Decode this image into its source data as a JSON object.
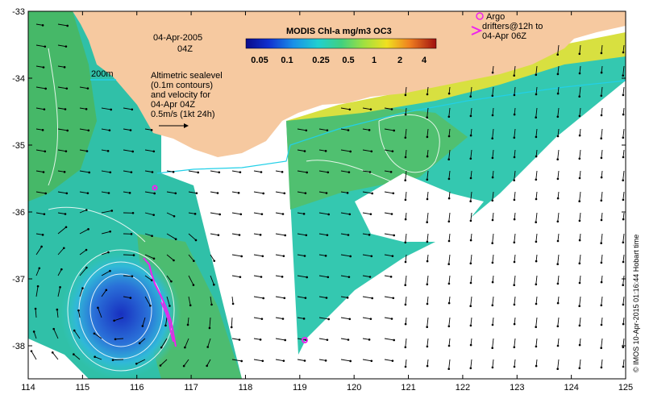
{
  "map": {
    "date_line1": "04-Apr-2005",
    "date_line2": "04Z",
    "isobath_label": "200m",
    "altimetry_text": [
      "Altimetric sealevel",
      "(0.1m contours)",
      "and velocity for",
      "04-Apr 04Z",
      "0.5m/s (1kt 24h)"
    ],
    "argo_text": [
      "Argo",
      "drifters@12h to",
      "04-Apr 06Z"
    ],
    "credit": "© IMOS 10-Apr-2015 01:16:44 Hobart time"
  },
  "colorbar": {
    "title": "MODIS Chl-a mg/m3 OC3",
    "ticks": [
      "0.05",
      "0.1",
      "0.25",
      "0.5",
      "1",
      "2",
      "4"
    ]
  },
  "axes": {
    "x_ticks": [
      "114",
      "115",
      "116",
      "117",
      "118",
      "119",
      "120",
      "121",
      "122",
      "123",
      "124",
      "125"
    ],
    "y_ticks": [
      "-33",
      "-34",
      "-35",
      "-36",
      "-37",
      "-38"
    ]
  },
  "colors": {
    "land": "#f6c9a0",
    "isobath": "#22d0e8",
    "argo": "#ee22ee"
  }
}
